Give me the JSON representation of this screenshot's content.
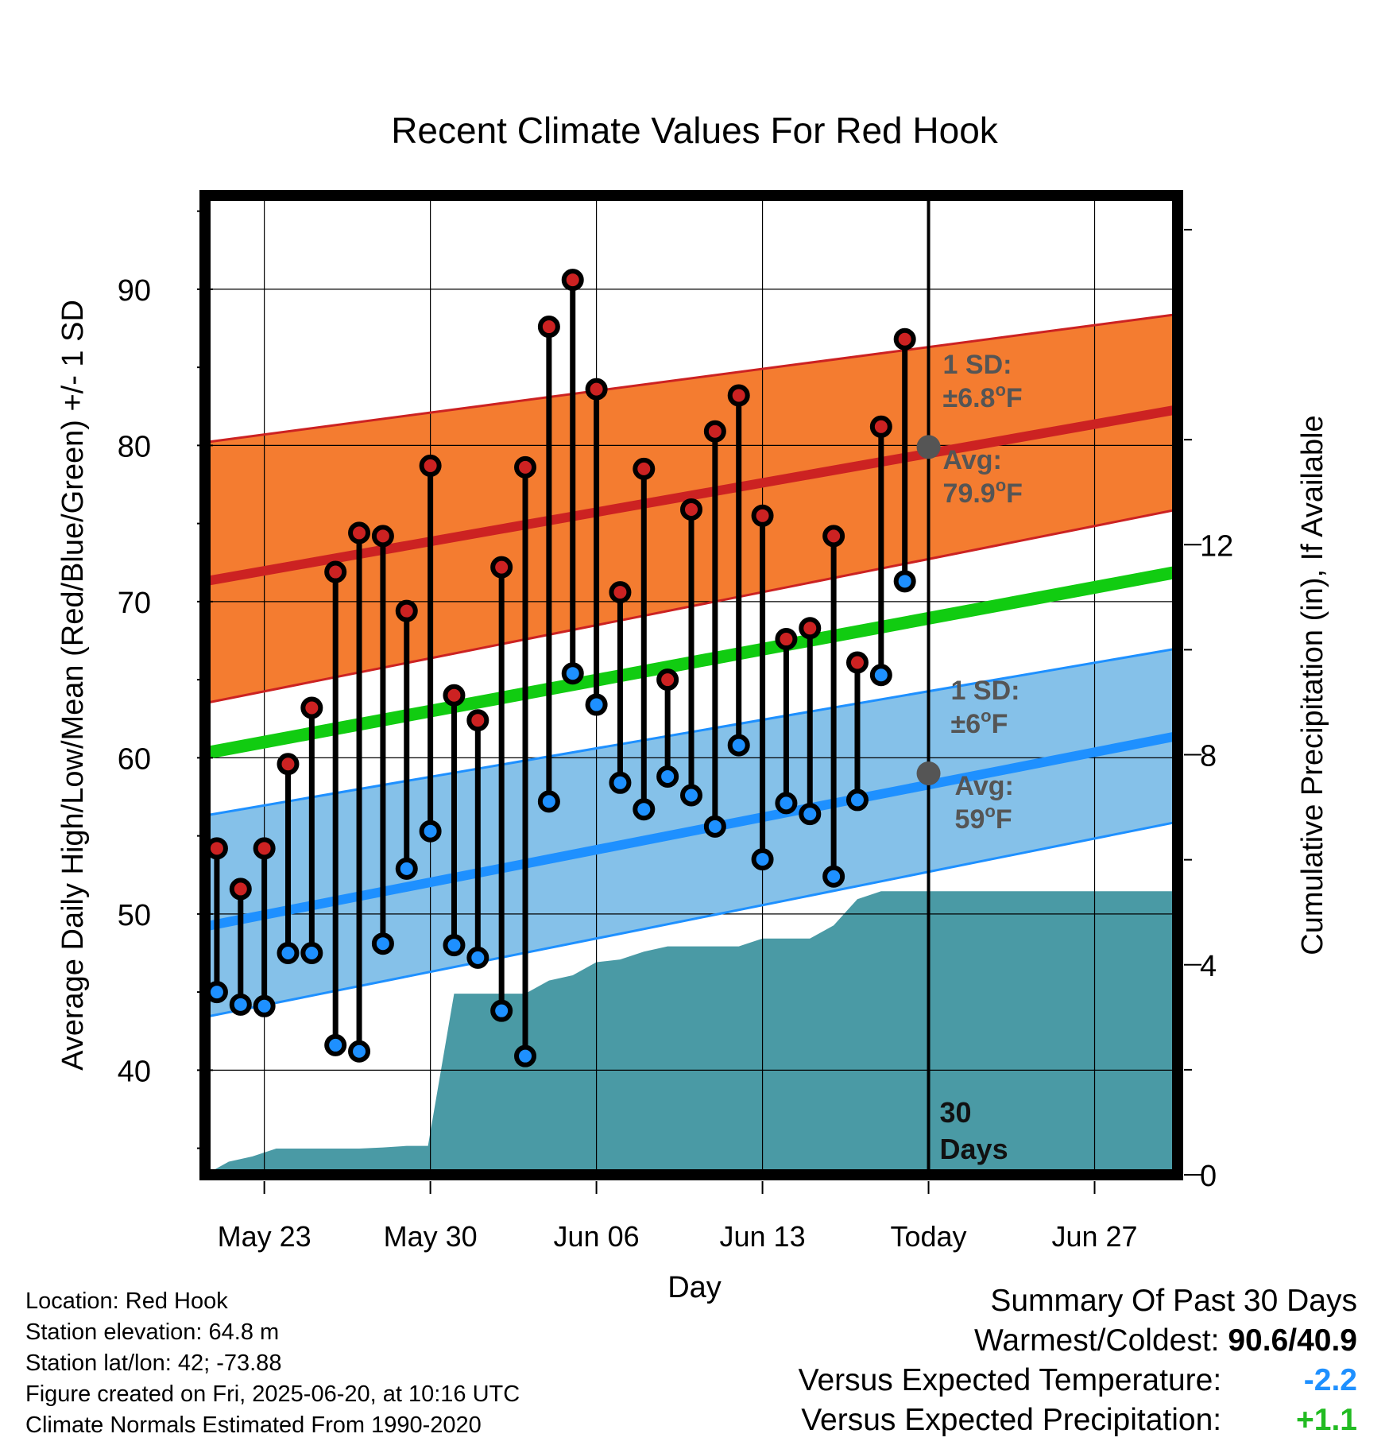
{
  "chart_data": {
    "type": "line",
    "title": "Recent Climate Values For Red Hook",
    "xlabel": "Day",
    "ylabel": "Average Daily High/Low/Mean (Red/Blue/Green) +/- 1 SD",
    "y2label": "Cumulative Precipitation (in), If Available",
    "ylim": [
      33.3,
      96
    ],
    "y2lim": [
      0,
      18.65
    ],
    "yticks": [
      40,
      50,
      60,
      70,
      80,
      90
    ],
    "y2ticks": [
      0,
      4,
      8,
      12
    ],
    "x_range_days": [
      -29.5,
      11.5
    ],
    "x_ticks": [
      {
        "day": -27,
        "label": "May 23"
      },
      {
        "day": -20,
        "label": "May 30"
      },
      {
        "day": -13,
        "label": "Jun 06"
      },
      {
        "day": -6,
        "label": "Jun 13"
      },
      {
        "day": 1,
        "label": "Today"
      },
      {
        "day": 8,
        "label": "Jun 27"
      }
    ],
    "today_day": 1,
    "today_label": "30 Days",
    "normals": {
      "x": [
        -29.5,
        11.5
      ],
      "high_avg": [
        71.3,
        82.3
      ],
      "high_upper": [
        80.2,
        88.4
      ],
      "high_lower": [
        63.5,
        75.9
      ],
      "low_avg": [
        49.2,
        61.4
      ],
      "low_upper": [
        56.3,
        67.0
      ],
      "low_lower": [
        43.4,
        55.9
      ],
      "mean": [
        60.3,
        71.9
      ]
    },
    "observed": {
      "days": [
        -29,
        -28,
        -27,
        -26,
        -25,
        -24,
        -23,
        -22,
        -21,
        -20,
        -19,
        -18,
        -17,
        -16,
        -15,
        -14,
        -13,
        -12,
        -11,
        -10,
        -9,
        -8,
        -7,
        -6,
        -5,
        -4,
        -3,
        -2,
        -1,
        0
      ],
      "highs": [
        54.2,
        51.6,
        54.2,
        59.6,
        63.2,
        71.9,
        74.4,
        74.2,
        69.4,
        78.7,
        64.0,
        62.4,
        72.2,
        78.6,
        87.6,
        90.6,
        83.6,
        70.6,
        78.5,
        65.0,
        75.9,
        80.9,
        83.2,
        75.5,
        67.6,
        68.3,
        74.2,
        66.1,
        81.2,
        86.8
      ],
      "lows": [
        45.0,
        44.2,
        44.1,
        47.5,
        47.5,
        41.6,
        41.2,
        48.1,
        52.9,
        55.3,
        48.0,
        47.2,
        43.8,
        40.9,
        57.2,
        65.4,
        63.4,
        58.4,
        56.7,
        58.8,
        57.6,
        55.6,
        60.8,
        53.5,
        57.1,
        56.4,
        52.4,
        57.3,
        65.3,
        71.3
      ],
      "low_is_red": [
        false,
        false,
        false,
        false,
        false,
        false,
        false,
        false,
        false,
        false,
        false,
        false,
        false,
        false,
        false,
        false,
        false,
        false,
        false,
        false,
        false,
        false,
        false,
        false,
        false,
        false,
        false,
        false,
        false,
        false
      ]
    },
    "precip_cumulative": {
      "days": [
        -29.5,
        -28.5,
        -27.5,
        -26.5,
        -25,
        -24,
        -23,
        -22,
        -21,
        -20.1,
        -19,
        -18,
        -17,
        -16,
        -15,
        -14,
        -13,
        -12,
        -11,
        -10,
        -9,
        -8,
        -7,
        -6,
        -5,
        -4,
        -3,
        -2,
        -1,
        0,
        11.5
      ],
      "values": [
        0.0,
        0.25,
        0.35,
        0.5,
        0.5,
        0.5,
        0.5,
        0.52,
        0.55,
        0.55,
        3.45,
        3.45,
        3.45,
        3.45,
        3.7,
        3.8,
        4.05,
        4.1,
        4.25,
        4.35,
        4.35,
        4.35,
        4.35,
        4.5,
        4.5,
        4.5,
        4.75,
        5.25,
        5.4,
        5.4,
        5.4
      ]
    },
    "annotations": {
      "high_sd_title": "1 SD:",
      "high_sd_value": "±6.8",
      "high_avg_title": "Avg:",
      "high_avg_value": "79.9",
      "low_sd_title": "1 SD:",
      "low_sd_value": "±6",
      "low_avg_title": "Avg:",
      "low_avg_value": "59",
      "degree_unit": "o",
      "temp_unit": "F",
      "today_high_avg": 79.9,
      "today_low_avg": 59.0
    },
    "colors": {
      "high_band": "#f47c30",
      "high_line": "#cc2222",
      "low_band": "#85c1e9",
      "low_line": "#1e90ff",
      "mean_line": "#11cc11",
      "precip_fill": "#4a9aa5",
      "high_marker": "#cc2222",
      "low_marker": "#1e90ff",
      "avg_marker": "#555555"
    }
  },
  "footer": {
    "location": "Location: Red Hook",
    "elevation": "Station elevation: 64.8 m",
    "latlon": "Station lat/lon: 42; -73.88",
    "created": "Figure created on Fri, 2025-06-20, at 10:16 UTC",
    "normals": "Climate Normals Estimated From 1990-2020"
  },
  "summary": {
    "title": "Summary Of Past 30 Days",
    "warm_cold_label": "Warmest/Coldest:",
    "warm_cold_value": "90.6/40.9",
    "temp_label": "Versus Expected Temperature:",
    "temp_value": "-2.2",
    "precip_label": "Versus Expected Precipitation:",
    "precip_value": "+1.1"
  }
}
